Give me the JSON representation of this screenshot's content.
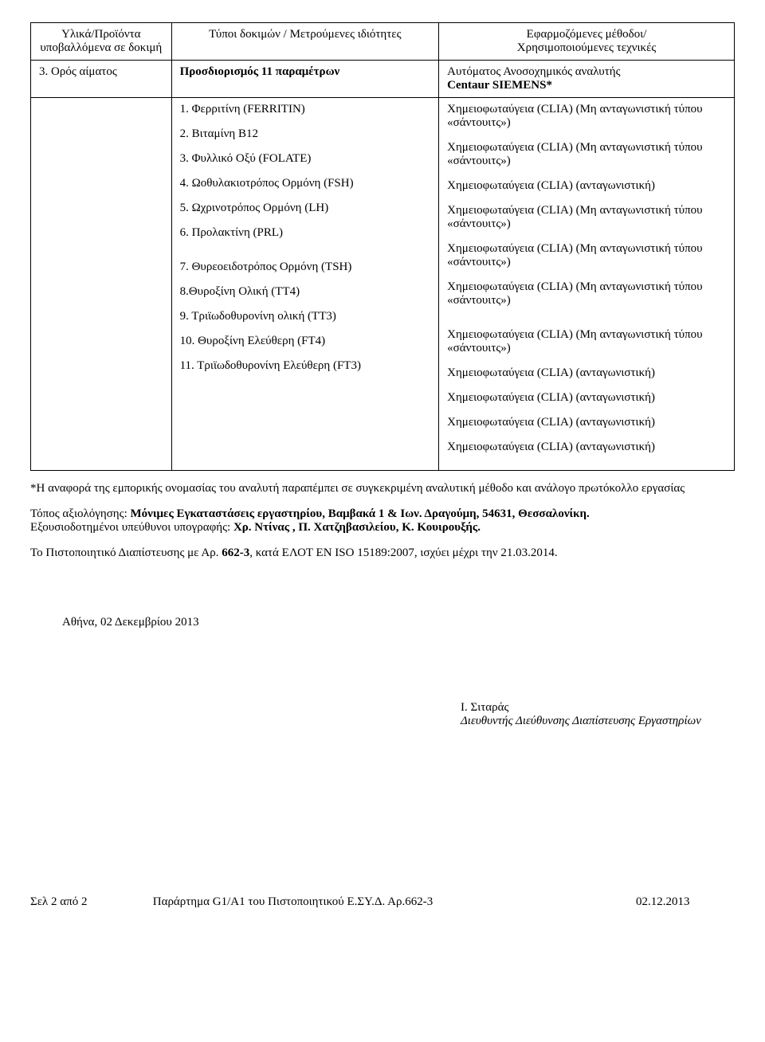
{
  "table": {
    "headers": {
      "col1_line1": "Υλικά/Προϊόντα",
      "col1_line2": "υποβαλλόμενα σε δοκιμή",
      "col2": "Τύποι δοκιμών / Μετρούμενες ιδιότητες",
      "col3_line1": "Εφαρμοζόμενες μέθοδοι/",
      "col3_line2": "Χρησιμοποιούμενες τεχνικές"
    },
    "row_main": {
      "col1": "3. Ορός αίματος",
      "col2": "Προσδιορισμός 11 παραμέτρων",
      "col3_line1": "Αυτόματος Ανοσοχημικός αναλυτής",
      "col3_line2": "Centaur SIEMENS*"
    },
    "items": [
      {
        "num": "1.",
        "name": "Φερριτίνη (FERRITIN)",
        "method": "Χημειοφωταύγεια (CLIA)  (Μη ανταγωνιστική τύπου «σάντουιτς»)"
      },
      {
        "num": "2.",
        "name": "Βιταμίνη Β12",
        "method": "Χημειοφωταύγεια (CLIA) (Μη ανταγωνιστική τύπου «σάντουιτς»)"
      },
      {
        "num": "3.",
        "name": "Φυλλικό Οξύ (FOLATE)",
        "method": "Χημειοφωταύγεια (CLIA) (ανταγωνιστική)"
      },
      {
        "num": "4.",
        "name": "Ωοθυλακιοτρόπος Ορμόνη (FSH)",
        "method": "Χημειοφωταύγεια (CLIA) (Μη ανταγωνιστική τύπου «σάντουιτς»)"
      },
      {
        "num": "5.",
        "name": "Ωχρινοτρόπος Ορμόνη (LH)",
        "method": "Χημειοφωταύγεια (CLIA) (Μη ανταγωνιστική τύπου «σάντουιτς»)"
      },
      {
        "num": "6.",
        "name": "Προλακτίνη (PRL)",
        "method": "Χημειοφωταύγεια (CLIA) (Μη ανταγωνιστική τύπου «σάντουιτς»)"
      },
      {
        "num": "7.",
        "name": "Θυρεοειδοτρόπος Ορμόνη (TSH)",
        "method": "Χημειοφωταύγεια (CLIA) (Μη ανταγωνιστική τύπου «σάντουιτς»)"
      },
      {
        "num": "8.",
        "name": "Θυροξίνη Ολική (TT4)",
        "method": "Χημειοφωταύγεια (CLIA) (ανταγωνιστική)"
      },
      {
        "num": "9.",
        "name": "Τριϊωδοθυρονίνη ολική (TT3)",
        "method": "Χημειοφωταύγεια (CLIA) (ανταγωνιστική)"
      },
      {
        "num": "10.",
        "name": "Θυροξίνη Ελεύθερη (FT4)",
        "method": "Χημειοφωταύγεια (CLIA) (ανταγωνιστική)"
      },
      {
        "num": "11.",
        "name": "Τριϊωδοθυρονίνη Ελεύθερη (FT3)",
        "method": "Χημειοφωταύγεια (CLIA) (ανταγωνιστική)"
      }
    ]
  },
  "footnote": "*Η αναφορά της εμπορικής ονομασίας του αναλυτή παραπέμπει σε συγκεκριμένη αναλυτική μέθοδο και ανάλογο πρωτόκολλο εργασίας",
  "location_label": "Τόπος αξιολόγησης:",
  "location_value": "Μόνιμες Εγκαταστάσεις εργαστηρίου, Βαμβακά 1 & Ιων. Δραγούμη, 54631, Θεσσαλονίκη.",
  "auth_label": "Εξουσιοδοτημένοι υπεύθυνοι υπογραφής:",
  "auth_value": "Χρ. Ντίνας , Π. Χατζηβασιλείου, Κ. Κουιρουξής.",
  "cert_text": "Το Πιστοποιητικό Διαπίστευσης με Αρ. ",
  "cert_num": "662-3",
  "cert_rest": ", κατά  ΕΛΟΤ EN ISO 15189:2007, ισχύει μέχρι την 21.03.2014.",
  "date_text": "Αθήνα, 02  Δεκεμβρίου 2013",
  "sig_name": "Ι. Σιταράς",
  "sig_title": "Διευθυντής Διεύθυνσης Διαπίστευσης Εργαστηρίων",
  "footer": {
    "left": "Σελ 2  από 2",
    "mid": "Παράρτημα G1/A1 του Πιστοποιητικού Ε.ΣΥ.Δ.  Αρ.662-3",
    "right": "02.12.2013"
  }
}
